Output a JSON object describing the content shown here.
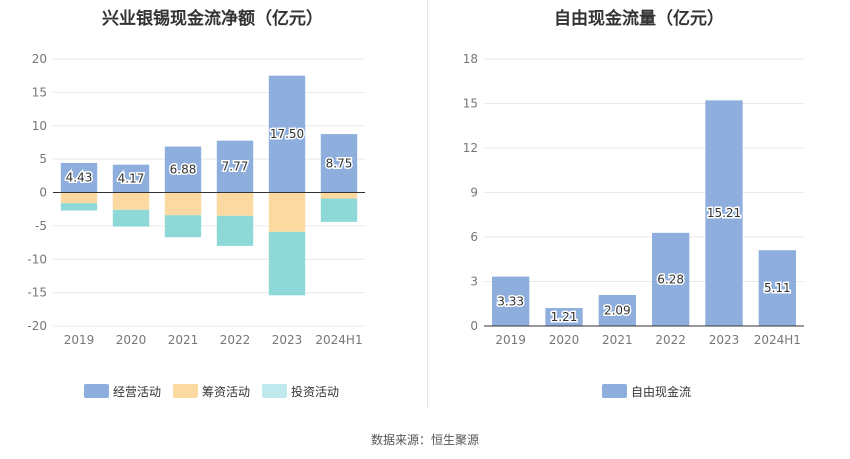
{
  "chart_data": [
    {
      "type": "bar",
      "stacked": true,
      "title": "兴业银锡现金流净额（亿元）",
      "categories": [
        "2019",
        "2020",
        "2021",
        "2022",
        "2023",
        "2024H1"
      ],
      "ylim": [
        -20,
        20
      ],
      "yticks": [
        20,
        15,
        10,
        5,
        0,
        -5,
        -10,
        -15,
        -20
      ],
      "grid": true,
      "legend_position": "bottom",
      "series": [
        {
          "name": "经营活动",
          "color": "#8eaedd",
          "values": [
            4.43,
            4.17,
            6.88,
            7.77,
            17.5,
            8.75
          ],
          "labels": [
            "4.43",
            "4.17",
            "6.88",
            "7.77",
            "17.50",
            "8.75"
          ]
        },
        {
          "name": "筹资活动",
          "color": "#fcd9a0",
          "values": [
            -1.6,
            -2.6,
            -3.4,
            -3.5,
            -5.9,
            -0.9
          ]
        },
        {
          "name": "投资活动",
          "color": "#8fd8d8",
          "values": [
            -1.1,
            -2.5,
            -3.3,
            -4.5,
            -9.5,
            -3.5
          ]
        }
      ]
    },
    {
      "type": "bar",
      "title": "自由现金流量（亿元）",
      "categories": [
        "2019",
        "2020",
        "2021",
        "2022",
        "2023",
        "2024H1"
      ],
      "ylim": [
        0,
        18
      ],
      "yticks": [
        18,
        15,
        12,
        9,
        6,
        3,
        0
      ],
      "grid": true,
      "legend_position": "bottom",
      "series": [
        {
          "name": "自由现金流",
          "color": "#8eaedd",
          "values": [
            3.33,
            1.21,
            2.09,
            6.28,
            15.21,
            5.11
          ],
          "labels": [
            "3.33",
            "1.21",
            "2.09",
            "6.28",
            "15.21",
            "5.11"
          ]
        }
      ]
    }
  ],
  "source": "数据来源：恒生聚源"
}
